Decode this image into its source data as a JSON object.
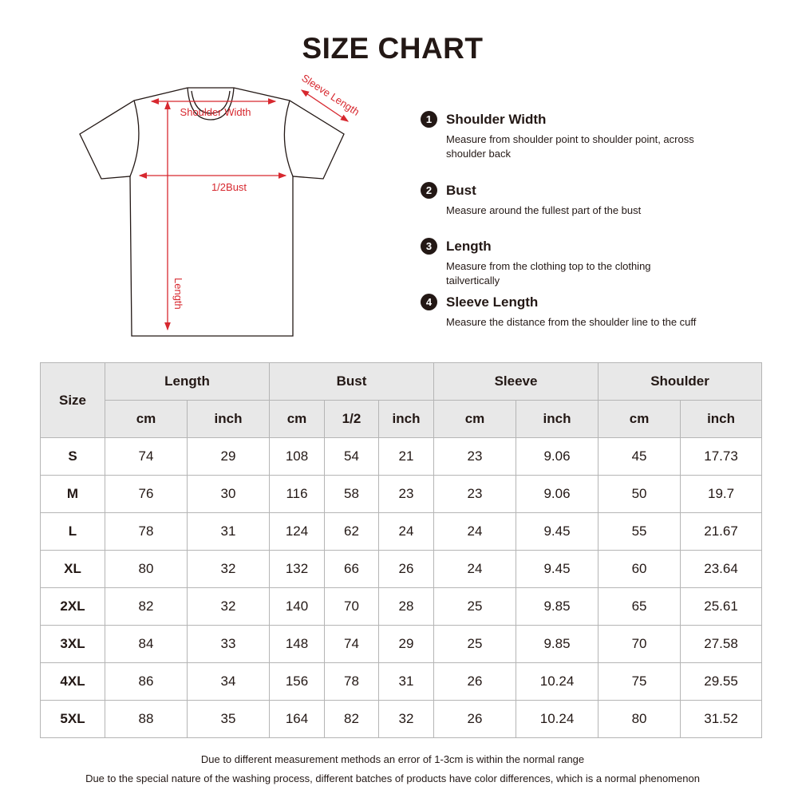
{
  "title": "SIZE CHART",
  "diagram": {
    "shoulder": "Shoulder Width",
    "bust": "1/2Bust",
    "length": "Length",
    "sleeve": "Sleeve Length",
    "arrow_color": "#d7282f"
  },
  "definitions": [
    {
      "num": "1",
      "label": "Shoulder Width",
      "desc": "Measure from shoulder point to shoulder point, across shoulder back"
    },
    {
      "num": "2",
      "label": "Bust",
      "desc": "Measure around the fullest part of the bust"
    },
    {
      "num": "3",
      "label": "Length",
      "desc": "Measure from the clothing top to the clothing tailvertically"
    },
    {
      "num": "4",
      "label": "Sleeve Length",
      "desc": "Measure the distance from the shoulder line to the cuff"
    }
  ],
  "table": {
    "size_header": "Size",
    "groups": [
      "Length",
      "Bust",
      "Sleeve",
      "Shoulder"
    ],
    "subheaders": [
      "cm",
      "inch",
      "cm",
      "1/2",
      "inch",
      "cm",
      "inch",
      "cm",
      "inch"
    ],
    "rows": [
      [
        "S",
        "74",
        "29",
        "108",
        "54",
        "21",
        "23",
        "9.06",
        "45",
        "17.73"
      ],
      [
        "M",
        "76",
        "30",
        "116",
        "58",
        "23",
        "23",
        "9.06",
        "50",
        "19.7"
      ],
      [
        "L",
        "78",
        "31",
        "124",
        "62",
        "24",
        "24",
        "9.45",
        "55",
        "21.67"
      ],
      [
        "XL",
        "80",
        "32",
        "132",
        "66",
        "26",
        "24",
        "9.45",
        "60",
        "23.64"
      ],
      [
        "2XL",
        "82",
        "32",
        "140",
        "70",
        "28",
        "25",
        "9.85",
        "65",
        "25.61"
      ],
      [
        "3XL",
        "84",
        "33",
        "148",
        "74",
        "29",
        "25",
        "9.85",
        "70",
        "27.58"
      ],
      [
        "4XL",
        "86",
        "34",
        "156",
        "78",
        "31",
        "26",
        "10.24",
        "75",
        "29.55"
      ],
      [
        "5XL",
        "88",
        "35",
        "164",
        "82",
        "32",
        "26",
        "10.24",
        "80",
        "31.52"
      ]
    ]
  },
  "notes": [
    "Due to different measurement methods an error of 1-3cm is within the normal range",
    "Due to the special nature of the washing process, different batches of products have color differences, which is a normal phenomenon"
  ]
}
